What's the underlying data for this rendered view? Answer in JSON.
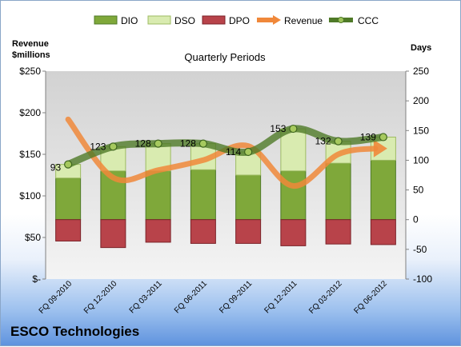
{
  "chart_data": {
    "type": "bar",
    "title": "Quarterly Periods",
    "ylabel_left": "Revenue\n$millions",
    "ylabel_right": "Days",
    "categories": [
      "FQ 09-2010",
      "FQ 12-2010",
      "FQ 03-2011",
      "FQ 06-2011",
      "FQ 09-2011",
      "FQ 12-2011",
      "FQ 03-2012",
      "FQ 06-2012"
    ],
    "left_axis": {
      "min": 0,
      "max": 250,
      "ticks": [
        "$-",
        "$50",
        "$100",
        "$150",
        "$200",
        "$250"
      ]
    },
    "right_axis": {
      "min": -100,
      "max": 250,
      "ticks": [
        "-100",
        "-50",
        "0",
        "50",
        "100",
        "150",
        "200",
        "250"
      ]
    },
    "series": [
      {
        "name": "DIO",
        "type": "bar-stacked",
        "axis": "days",
        "color": "#7fa83a",
        "values": [
          70,
          82,
          82,
          84,
          75,
          82,
          95,
          100
        ]
      },
      {
        "name": "DSO",
        "type": "bar-stacked",
        "axis": "days",
        "color": "#d9ebb0",
        "values": [
          23,
          41,
          46,
          44,
          39,
          71,
          37,
          39
        ]
      },
      {
        "name": "DPO",
        "type": "bar-negative",
        "axis": "days",
        "color": "#b8434a",
        "values": [
          -36,
          -47,
          -38,
          -40,
          -40,
          -44,
          -41,
          -42
        ]
      },
      {
        "name": "Revenue",
        "type": "line",
        "axis": "revenue",
        "color": "#f0883a",
        "values": [
          192,
          122,
          131,
          143,
          160,
          112,
          150,
          157
        ]
      },
      {
        "name": "CCC",
        "type": "line-markers",
        "axis": "days",
        "color": "#4f7a28",
        "values": [
          93,
          123,
          128,
          128,
          114,
          153,
          132,
          139
        ]
      }
    ],
    "data_labels": [
      "93",
      "123",
      "128",
      "128",
      "114",
      "153",
      "132",
      "139"
    ],
    "grid": false,
    "legend_position": "top"
  },
  "company": "ESCO Technologies"
}
